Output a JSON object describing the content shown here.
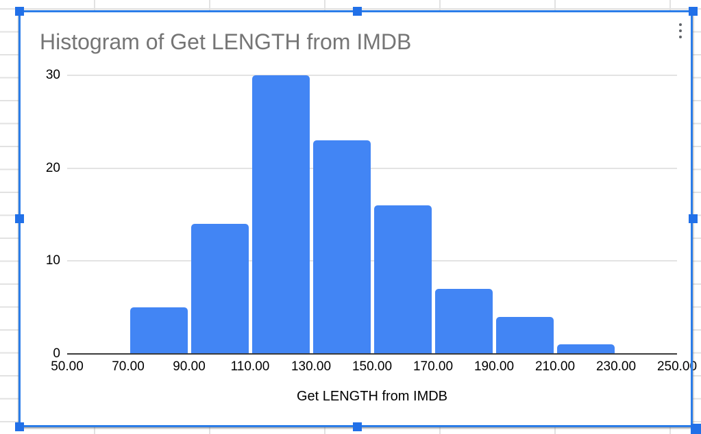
{
  "selection": {
    "border_color": "#2b7de9",
    "handle_color": "#2170e8",
    "handles": [
      "nw",
      "n",
      "ne",
      "w",
      "e",
      "sw",
      "s",
      "se"
    ]
  },
  "menu": {
    "more_options_icon": "vertical-ellipsis"
  },
  "chart_data": {
    "type": "bar",
    "subtype": "histogram",
    "title": "Histogram of Get LENGTH from IMDB",
    "title_color": "#757575",
    "xlabel": "Get LENGTH from IMDB",
    "ylabel": "",
    "bar_color": "#4285f4",
    "grid": true,
    "legend_position": "none",
    "xlim": [
      50,
      250
    ],
    "ylim": [
      0,
      30
    ],
    "x_ticks": [
      "50.00",
      "70.00",
      "90.00",
      "110.00",
      "130.00",
      "150.00",
      "170.00",
      "190.00",
      "210.00",
      "230.00",
      "250.00"
    ],
    "y_ticks": [
      0,
      10,
      20,
      30
    ],
    "bins": [
      {
        "from": 70,
        "to": 90,
        "count": 5
      },
      {
        "from": 90,
        "to": 110,
        "count": 14
      },
      {
        "from": 110,
        "to": 130,
        "count": 30
      },
      {
        "from": 130,
        "to": 150,
        "count": 23
      },
      {
        "from": 150,
        "to": 170,
        "count": 16
      },
      {
        "from": 170,
        "to": 190,
        "count": 7
      },
      {
        "from": 190,
        "to": 210,
        "count": 4
      },
      {
        "from": 210,
        "to": 230,
        "count": 1
      }
    ]
  }
}
